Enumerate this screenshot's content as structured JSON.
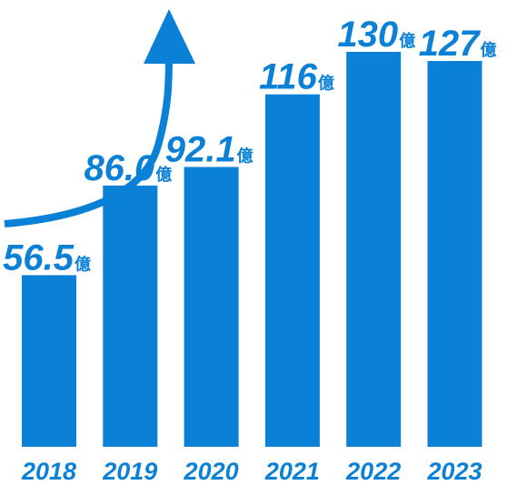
{
  "chart_data": {
    "type": "bar",
    "categories": [
      "2018",
      "2019",
      "2020",
      "2021",
      "2022",
      "2023"
    ],
    "values": [
      56.5,
      86.0,
      92.1,
      116,
      130,
      127
    ],
    "value_labels": [
      "56.5",
      "86.0",
      "92.1",
      "116",
      "130",
      "127"
    ],
    "unit": "億",
    "title": "",
    "xlabel": "",
    "ylabel": "",
    "ylim": [
      0,
      130
    ],
    "grid": false,
    "legend": "none",
    "colors": {
      "bar": "#0a80d6",
      "text": "#0a80d6",
      "arrow": "#0a80d6"
    },
    "decorations": [
      "upward-trend-arrow-icon"
    ]
  }
}
